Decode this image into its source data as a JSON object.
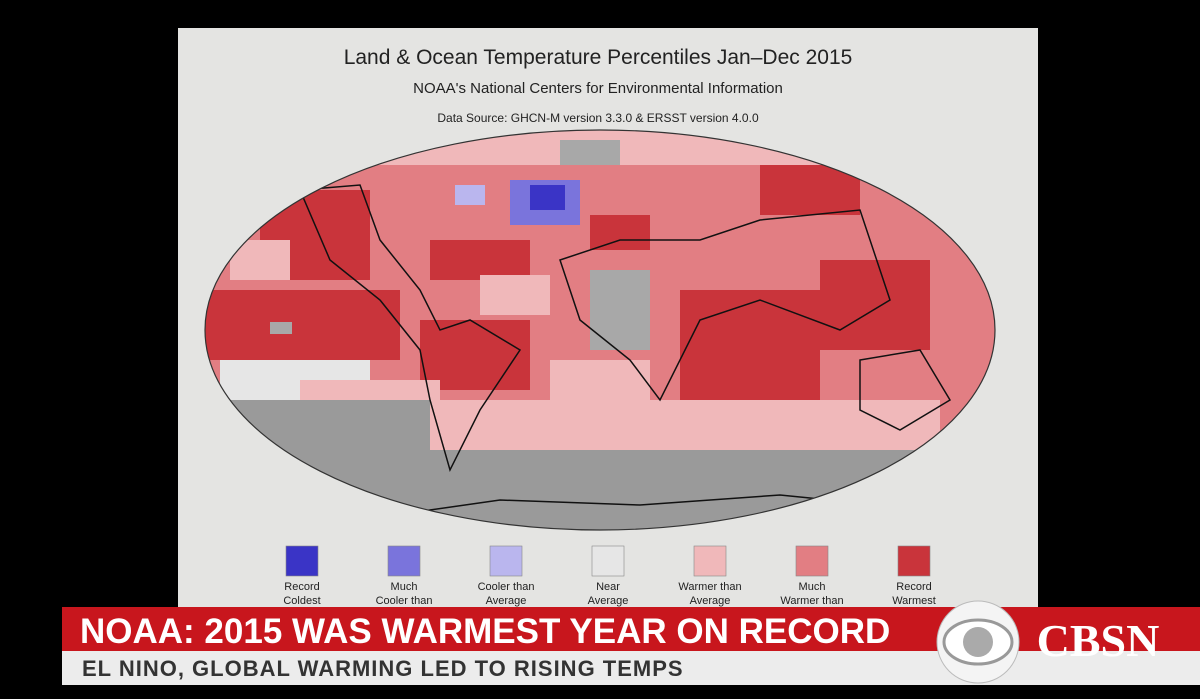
{
  "map": {
    "title": "Land & Ocean Temperature Percentiles Jan–Dec 2015",
    "subtitle": "NOAA's National Centers for Environmental Information",
    "source": "Data Source: GHCN-M version 3.3.0 & ERSST version 4.0.0",
    "legend": [
      {
        "lines": [
          "Record",
          "Coldest"
        ],
        "color": "#3a34c6"
      },
      {
        "lines": [
          "Much",
          "Cooler than"
        ],
        "color": "#7a74dc"
      },
      {
        "lines": [
          "Cooler than",
          "Average"
        ],
        "color": "#bab6ee"
      },
      {
        "lines": [
          "Near",
          "Average"
        ],
        "color": "#e6e6e6"
      },
      {
        "lines": [
          "Warmer than",
          "Average"
        ],
        "color": "#f0b8ba"
      },
      {
        "lines": [
          "Much",
          "Warmer than"
        ],
        "color": "#e27e83"
      },
      {
        "lines": [
          "Record",
          "Warmest"
        ],
        "color": "#c9343b"
      }
    ]
  },
  "banner": {
    "headline": "NOAA: 2015 WAS WARMEST YEAR ON RECORD",
    "subheadline": "EL NINO, GLOBAL WARMING LED TO RISING TEMPS",
    "network": "CBSN"
  }
}
